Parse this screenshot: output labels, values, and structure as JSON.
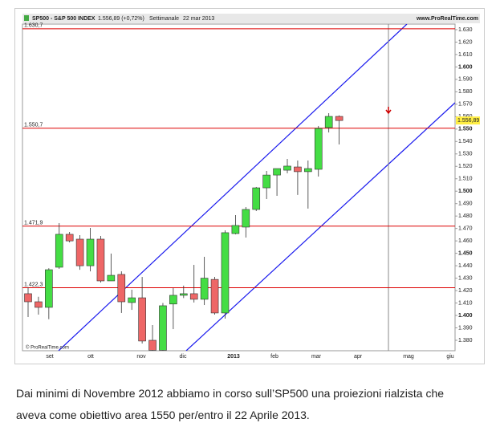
{
  "chart_data": {
    "type": "candlestick",
    "title": "SP500 - S&P 500 INDEX",
    "subtitle": "1.556,89 (+0,72%)",
    "period": "Settimanale",
    "date": "22 mar 2013",
    "source": "www.ProRealTime.com",
    "copyright": "© ProRealTime.com",
    "open": [
      1417.5,
      1411,
      1406.5,
      1438.8,
      1465.3,
      1461.4,
      1440,
      1461.4,
      1427.8,
      1433,
      1410.4,
      1414.2,
      1380,
      1372,
      1409.2,
      1416.2,
      1417.5,
      1413,
      1429,
      1402,
      1465.9,
      1471.1,
      1485.3,
      1502.7,
      1513,
      1516.9,
      1519.5,
      1515.7,
      1517.6,
      1551.2,
      1560.2
    ],
    "high": [
      1422.6,
      1415,
      1438,
      1474.3,
      1467.2,
      1464.6,
      1470.4,
      1464,
      1449.8,
      1435.5,
      1420.7,
      1431,
      1392.3,
      1410,
      1422,
      1424,
      1440.7,
      1447.2,
      1431,
      1468.5,
      1480.8,
      1487.2,
      1503.4,
      1516.3,
      1518.2,
      1526,
      1524.7,
      1524.7,
      1552.5,
      1562.8,
      1561
    ],
    "low": [
      1398.7,
      1400.7,
      1397,
      1437.5,
      1458.8,
      1436.8,
      1435.5,
      1426.5,
      1427.8,
      1402,
      1404.5,
      1377.4,
      1368,
      1368,
      1389,
      1414,
      1410.4,
      1408.4,
      1400.7,
      1397.4,
      1465.3,
      1462.7,
      1484,
      1493.7,
      1496.3,
      1514.4,
      1497,
      1486,
      1511.8,
      1547.3,
      1537.6
    ],
    "close": [
      1411,
      1406.5,
      1436.8,
      1465.3,
      1460,
      1440,
      1461.4,
      1427.8,
      1432.3,
      1411,
      1414.2,
      1379.4,
      1372,
      1407.8,
      1416.2,
      1417.5,
      1413,
      1430,
      1402,
      1466.6,
      1472.4,
      1485.3,
      1502.7,
      1513,
      1518.2,
      1520.2,
      1515.7,
      1518.2,
      1550.5,
      1560.2,
      1556.89
    ],
    "up_color": "#44dd44",
    "down_color": "#ee6666",
    "hlines": [
      {
        "value": 1630.7,
        "label": "1.630,7"
      },
      {
        "value": 1550.7,
        "label": "1.550,7"
      },
      {
        "value": 1471.9,
        "label": "1.471,9"
      },
      {
        "value": 1422.3,
        "label": "1.422,3"
      }
    ],
    "hline_color": "#dd0000",
    "last_price": {
      "value": 1556.89,
      "label": "1.556,89"
    },
    "xtick_labels": [
      "set",
      "ott",
      "nov",
      "dic",
      "2013",
      "feb",
      "mar",
      "apr",
      "mag",
      "giu"
    ],
    "ylim": [
      1371.6,
      1634.5
    ],
    "yticks": [
      {
        "value": 1380,
        "label": "1.380"
      },
      {
        "value": 1390,
        "label": "1.390"
      },
      {
        "value": 1400,
        "label": "1.400"
      },
      {
        "value": 1410,
        "label": "1.410"
      },
      {
        "value": 1420,
        "label": "1.420"
      },
      {
        "value": 1430,
        "label": "1.430"
      },
      {
        "value": 1440,
        "label": "1.440"
      },
      {
        "value": 1450,
        "label": "1.450"
      },
      {
        "value": 1460,
        "label": "1.460"
      },
      {
        "value": 1470,
        "label": "1.470"
      },
      {
        "value": 1480,
        "label": "1.480"
      },
      {
        "value": 1490,
        "label": "1.490"
      },
      {
        "value": 1500,
        "label": "1.500"
      },
      {
        "value": 1510,
        "label": "1.510"
      },
      {
        "value": 1520,
        "label": "1.520"
      },
      {
        "value": 1530,
        "label": "1.530"
      },
      {
        "value": 1540,
        "label": "1.540"
      },
      {
        "value": 1550,
        "label": "1.550"
      },
      {
        "value": 1560,
        "label": "1.560"
      },
      {
        "value": 1570,
        "label": "1.570"
      },
      {
        "value": 1580,
        "label": "1.580"
      },
      {
        "value": 1590,
        "label": "1.590"
      },
      {
        "value": 1600,
        "label": "1.600"
      },
      {
        "value": 1610,
        "label": "1.610"
      },
      {
        "value": 1620,
        "label": "1.620"
      },
      {
        "value": 1630,
        "label": "1.630"
      }
    ]
  },
  "caption": [
    "Dai minimi di Novembre 2012 abbiamo in corso sull’SP500 una proiezioni rialzista che",
    "aveva come obiettivo area 1550 per/entro il 22 Aprile 2013."
  ]
}
